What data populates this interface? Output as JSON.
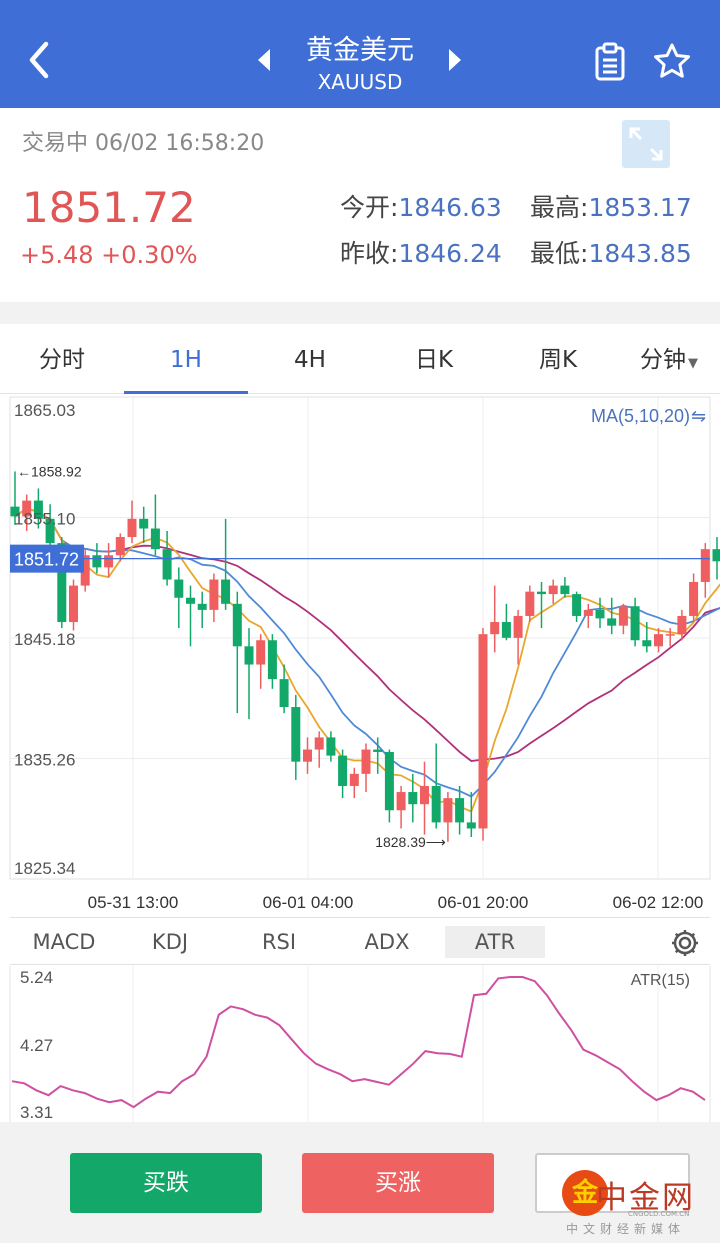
{
  "header": {
    "title": "黄金美元",
    "subtitle": "XAUUSD"
  },
  "quote": {
    "status": "交易中 06/02 16:58:20",
    "price": "1851.72",
    "change": "+5.48 +0.30%",
    "open_label": "今开:",
    "open": "1846.63",
    "high_label": "最高:",
    "high": "1853.17",
    "prev_close_label": "昨收:",
    "prev_close": "1846.24",
    "low_label": "最低:",
    "low": "1843.85"
  },
  "tabs": [
    "分时",
    "1H",
    "4H",
    "日K",
    "周K",
    "分钟"
  ],
  "active_tab": "1H",
  "indicator_tabs": [
    "MACD",
    "KDJ",
    "RSI",
    "ADX",
    "ATR"
  ],
  "active_indicator": "ATR",
  "buttons": {
    "sell": "买跌",
    "buy": "买涨"
  },
  "watermark": {
    "mark": "金",
    "name": "中金网",
    "domain": "CNGOLD.COM.CN",
    "slogan": "中文财经新媒体"
  },
  "colors": {
    "accent": "#3f6fd6",
    "up": "#ef5f5f",
    "down": "#12a86a",
    "ma5": "#e8a72c",
    "ma10": "#4f8ad6",
    "ma20": "#b0307a",
    "atr": "#cf4fa0"
  },
  "chart_data": [
    {
      "type": "candlestick",
      "title": "MA(5,10,20)",
      "y_ticks": [
        "1865.03",
        "1855.10",
        "1845.18",
        "1835.26",
        "1825.34"
      ],
      "x_ticks": [
        "05-31 13:00",
        "06-01 04:00",
        "06-01 20:00",
        "06-02 12:00"
      ],
      "ylim": [
        1825.34,
        1865.03
      ],
      "current_price_label": "1851.72",
      "max_label": "1858.92",
      "min_label": "1828.39",
      "candles": [
        [
          1856.0,
          1858.9,
          1854.5,
          1855.2
        ],
        [
          1855.2,
          1857.0,
          1854.0,
          1856.5
        ],
        [
          1856.5,
          1857.5,
          1854.2,
          1855.0
        ],
        [
          1855.0,
          1856.2,
          1852.5,
          1853.0
        ],
        [
          1853.0,
          1853.5,
          1846.0,
          1846.5
        ],
        [
          1846.5,
          1850.0,
          1845.8,
          1849.5
        ],
        [
          1849.5,
          1852.5,
          1849.0,
          1852.0
        ],
        [
          1852.0,
          1853.0,
          1850.5,
          1851.0
        ],
        [
          1851.0,
          1853.0,
          1850.2,
          1852.0
        ],
        [
          1852.0,
          1853.8,
          1851.5,
          1853.5
        ],
        [
          1853.5,
          1856.5,
          1853.0,
          1855.0
        ],
        [
          1855.0,
          1856.0,
          1853.0,
          1854.2
        ],
        [
          1854.2,
          1857.0,
          1852.0,
          1852.5
        ],
        [
          1852.5,
          1854.0,
          1849.5,
          1850.0
        ],
        [
          1850.0,
          1851.0,
          1846.0,
          1848.5
        ],
        [
          1848.5,
          1849.5,
          1844.5,
          1848.0
        ],
        [
          1848.0,
          1849.0,
          1846.0,
          1847.5
        ],
        [
          1847.5,
          1850.5,
          1846.5,
          1850.0
        ],
        [
          1850.0,
          1855.0,
          1847.5,
          1848.0
        ],
        [
          1848.0,
          1849.0,
          1839.0,
          1844.5
        ],
        [
          1844.5,
          1846.0,
          1838.5,
          1843.0
        ],
        [
          1843.0,
          1845.5,
          1841.0,
          1845.0
        ],
        [
          1845.0,
          1845.5,
          1841.0,
          1841.8
        ],
        [
          1841.8,
          1843.0,
          1839.0,
          1839.5
        ],
        [
          1839.5,
          1840.5,
          1833.5,
          1835.0
        ],
        [
          1835.0,
          1837.0,
          1834.0,
          1836.0
        ],
        [
          1836.0,
          1837.5,
          1834.5,
          1837.0
        ],
        [
          1837.0,
          1837.5,
          1835.0,
          1835.5
        ],
        [
          1835.5,
          1836.0,
          1832.0,
          1833.0
        ],
        [
          1833.0,
          1834.5,
          1832.0,
          1834.0
        ],
        [
          1834.0,
          1836.5,
          1832.5,
          1836.0
        ],
        [
          1836.0,
          1837.0,
          1834.0,
          1835.8
        ],
        [
          1835.8,
          1836.0,
          1830.0,
          1831.0
        ],
        [
          1831.0,
          1833.0,
          1829.5,
          1832.5
        ],
        [
          1832.5,
          1834.0,
          1830.0,
          1831.5
        ],
        [
          1831.5,
          1835.0,
          1829.0,
          1833.0
        ],
        [
          1833.0,
          1836.5,
          1829.5,
          1830.0
        ],
        [
          1830.0,
          1832.5,
          1828.4,
          1832.0
        ],
        [
          1832.0,
          1833.0,
          1829.0,
          1830.0
        ],
        [
          1830.0,
          1832.5,
          1828.8,
          1829.5
        ],
        [
          1829.5,
          1846.0,
          1828.5,
          1845.5
        ],
        [
          1845.5,
          1849.5,
          1844.0,
          1846.5
        ],
        [
          1846.5,
          1848.0,
          1845.0,
          1845.2
        ],
        [
          1845.2,
          1847.5,
          1843.0,
          1847.0
        ],
        [
          1847.0,
          1849.5,
          1846.5,
          1849.0
        ],
        [
          1849.0,
          1849.8,
          1846.0,
          1848.8
        ],
        [
          1848.8,
          1850.0,
          1848.0,
          1849.5
        ],
        [
          1849.5,
          1850.2,
          1848.5,
          1848.8
        ],
        [
          1848.8,
          1849.0,
          1846.5,
          1847.0
        ],
        [
          1847.0,
          1848.0,
          1846.0,
          1847.5
        ],
        [
          1847.5,
          1848.5,
          1846.0,
          1846.8
        ],
        [
          1846.8,
          1848.5,
          1845.5,
          1846.2
        ],
        [
          1846.2,
          1848.0,
          1845.5,
          1847.8
        ],
        [
          1847.8,
          1848.5,
          1844.5,
          1845.0
        ],
        [
          1845.0,
          1846.5,
          1844.0,
          1844.5
        ],
        [
          1844.5,
          1846.0,
          1844.0,
          1845.5
        ],
        [
          1845.5,
          1846.0,
          1844.5,
          1845.5
        ],
        [
          1845.5,
          1847.5,
          1845.0,
          1847.0
        ],
        [
          1847.0,
          1850.5,
          1846.5,
          1849.8
        ],
        [
          1849.8,
          1853.0,
          1848.5,
          1852.5
        ],
        [
          1852.5,
          1853.5,
          1850.0,
          1851.5
        ],
        [
          1851.5,
          1853.0,
          1850.5,
          1851.7
        ]
      ]
    },
    {
      "type": "line",
      "title": "ATR(15)",
      "y_ticks": [
        "5.24",
        "4.27",
        "3.31"
      ],
      "ylim": [
        3.31,
        5.24
      ],
      "series": [
        {
          "name": "ATR(15)",
          "values": [
            3.75,
            3.72,
            3.62,
            3.55,
            3.68,
            3.62,
            3.58,
            3.5,
            3.45,
            3.48,
            3.38,
            3.5,
            3.6,
            3.58,
            3.75,
            3.85,
            4.1,
            4.7,
            4.82,
            4.78,
            4.7,
            4.66,
            4.55,
            4.35,
            4.15,
            4.0,
            3.92,
            3.85,
            3.75,
            3.78,
            3.74,
            3.7,
            3.85,
            4.0,
            4.18,
            4.15,
            4.14,
            4.1,
            4.98,
            5.0,
            5.22,
            5.24,
            5.24,
            5.18,
            4.98,
            4.72,
            4.48,
            4.2,
            4.12,
            4.02,
            3.92,
            3.75,
            3.6,
            3.48,
            3.55,
            3.65,
            3.6,
            3.48
          ]
        }
      ]
    }
  ]
}
